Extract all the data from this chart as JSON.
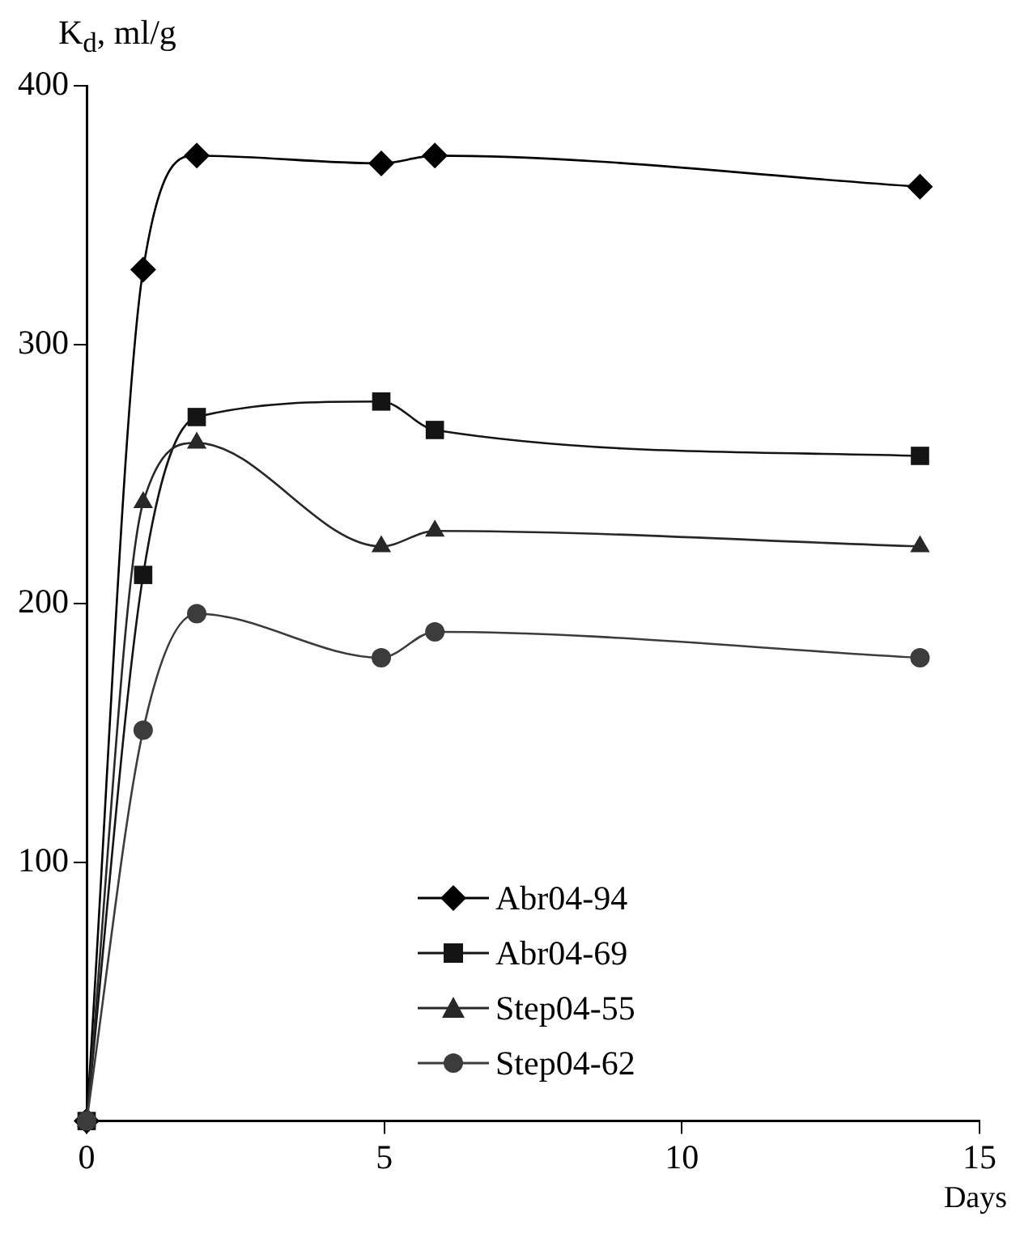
{
  "chart_data": {
    "type": "line",
    "ylabel": "K$_{d}$, ml/g",
    "xlabel": "Days",
    "xlim": [
      0,
      15
    ],
    "xticks": [
      0,
      5,
      10,
      15
    ],
    "ylim": [
      0,
      400
    ],
    "yticks": [
      100,
      200,
      300,
      400
    ],
    "grid": false,
    "legend": "bottom",
    "line_style": "solid",
    "series": [
      {
        "name": "Abr04-94",
        "color": "#000000",
        "marker": "diamond",
        "x": [
          0,
          0.95,
          1.85,
          4.95,
          5.85,
          14
        ],
        "values": [
          0,
          329,
          373,
          370,
          373,
          361
        ]
      },
      {
        "name": "Abr04-69",
        "color": "#141414",
        "marker": "square",
        "x": [
          0,
          0.95,
          1.85,
          4.95,
          5.85,
          14
        ],
        "values": [
          0,
          211,
          272,
          278,
          267,
          257
        ]
      },
      {
        "name": "Step04-55",
        "color": "#282828",
        "marker": "triangle",
        "x": [
          0,
          0.95,
          1.85,
          4.95,
          5.85,
          14
        ],
        "values": [
          0,
          239,
          262,
          222,
          228,
          222
        ]
      },
      {
        "name": "Step04-62",
        "color": "#3c3c3c",
        "marker": "circle",
        "x": [
          0,
          0.95,
          1.85,
          4.95,
          5.85,
          14
        ],
        "values": [
          0,
          151,
          196,
          179,
          189,
          179
        ]
      }
    ]
  }
}
